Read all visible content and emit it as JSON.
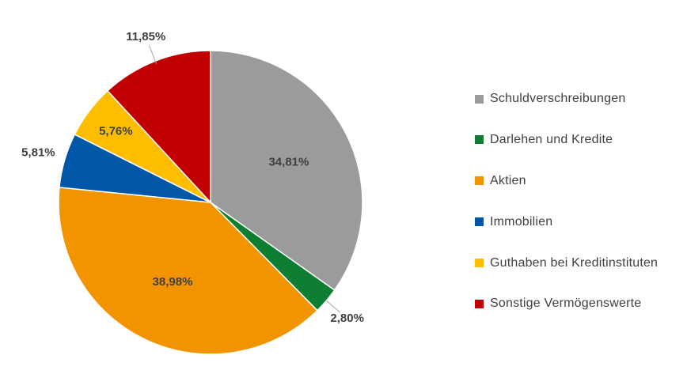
{
  "chart_data": {
    "type": "pie",
    "title": "",
    "legend_position": "right",
    "slices": [
      {
        "label": "Schuldverschreibungen",
        "value": 34.81,
        "display": "34,81%",
        "color": "#9B9B9B"
      },
      {
        "label": "Darlehen und Kredite",
        "value": 2.8,
        "display": "2,80%",
        "color": "#0E7E32"
      },
      {
        "label": "Aktien",
        "value": 38.98,
        "display": "38,98%",
        "color": "#F29400"
      },
      {
        "label": "Immobilien",
        "value": 5.81,
        "display": "5,81%",
        "color": "#0057A8"
      },
      {
        "label": "Guthaben bei Kreditinstituten",
        "value": 5.76,
        "display": "5,76%",
        "color": "#FFBD00"
      },
      {
        "label": "Sonstige Vermögenswerte",
        "value": 11.85,
        "display": "11,85%",
        "color": "#C00000"
      }
    ]
  }
}
